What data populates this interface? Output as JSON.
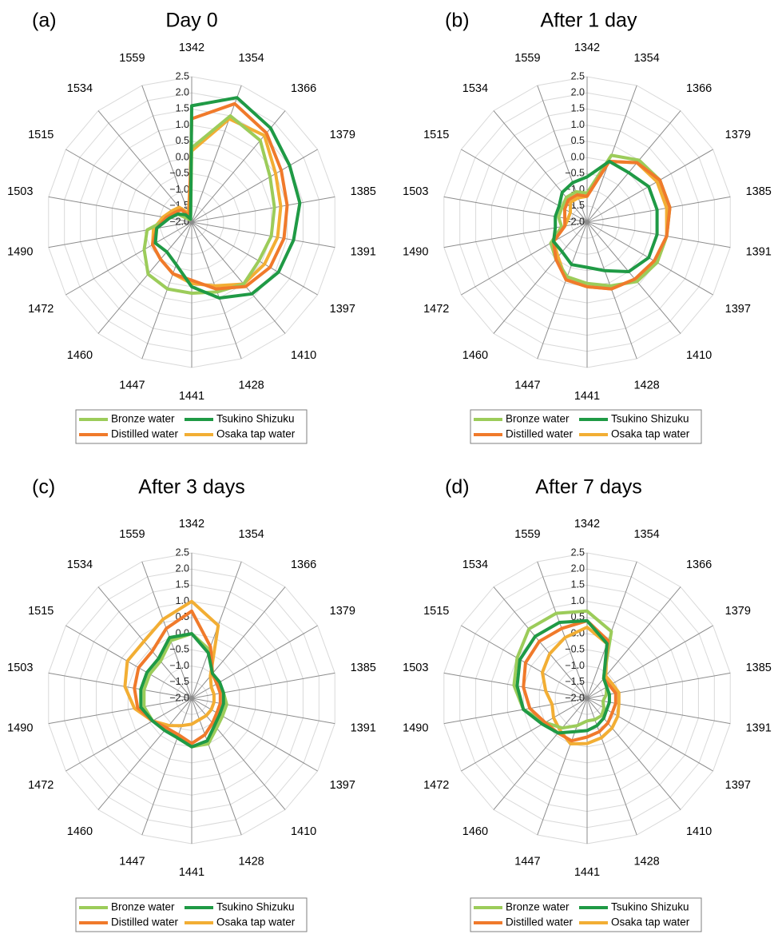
{
  "figure": {
    "categories": [
      "1342",
      "1354",
      "1366",
      "1379",
      "1385",
      "1391",
      "1397",
      "1410",
      "1428",
      "1441",
      "1447",
      "1460",
      "1472",
      "1490",
      "1503",
      "1515",
      "1534",
      "1559"
    ],
    "rticks": [
      "2.5",
      "2.0",
      "1.5",
      "1.0",
      "0.5",
      "0.0",
      "−0.5",
      "−1.0",
      "−1.5",
      "−2.0"
    ],
    "legend": [
      {
        "name": "Bronze water",
        "color": "#9ccc5a"
      },
      {
        "name": "Tsukino Shizuku",
        "color": "#1f9a45"
      },
      {
        "name": "Distilled water",
        "color": "#f07a2b"
      },
      {
        "name": "Osaka tap water",
        "color": "#f2ae34"
      }
    ]
  },
  "chart_data": [
    {
      "type": "radar",
      "panel": "(a)",
      "title": "Day 0",
      "categories": [
        "1342",
        "1354",
        "1366",
        "1379",
        "1385",
        "1391",
        "1397",
        "1410",
        "1428",
        "1441",
        "1447",
        "1460",
        "1472",
        "1490",
        "1503",
        "1515",
        "1534",
        "1559"
      ],
      "rlim": [
        -2.0,
        2.5
      ],
      "series": [
        {
          "name": "Bronze water",
          "color": "#9ccc5a",
          "values": [
            0.3,
            1.5,
            1.3,
            0.8,
            0.6,
            0.5,
            0.4,
            0.5,
            0.3,
            0.2,
            0.2,
            0.1,
            -0.3,
            -0.6,
            -1.3,
            -1.5,
            -1.9,
            -1.9
          ]
        },
        {
          "name": "Tsukino Shizuku",
          "color": "#1f9a45",
          "values": [
            1.6,
            2.1,
            1.8,
            1.5,
            1.4,
            1.2,
            1.1,
            0.9,
            0.5,
            0.0,
            -0.6,
            -0.8,
            -0.7,
            -0.9,
            -1.3,
            -1.5,
            -1.7,
            -1.9
          ]
        },
        {
          "name": "Distilled water",
          "color": "#f07a2b",
          "values": [
            1.2,
            1.9,
            1.6,
            1.2,
            1.0,
            0.9,
            0.8,
            0.6,
            0.2,
            -0.2,
            -0.3,
            -0.5,
            -0.6,
            -0.9,
            -1.2,
            -1.4,
            -1.5,
            -1.8
          ]
        },
        {
          "name": "Osaka tap water",
          "color": "#f2ae34",
          "values": [
            0.2,
            1.4,
            1.5,
            1.0,
            0.8,
            0.7,
            0.6,
            0.5,
            0.1,
            -0.1,
            -0.3,
            -0.5,
            -0.6,
            -0.8,
            -1.1,
            -1.3,
            -1.4,
            -1.7
          ]
        }
      ]
    },
    {
      "type": "radar",
      "panel": "(b)",
      "title": "After 1 day",
      "categories": [
        "1342",
        "1354",
        "1366",
        "1379",
        "1385",
        "1391",
        "1397",
        "1410",
        "1428",
        "1441",
        "1447",
        "1460",
        "1472",
        "1490",
        "1503",
        "1515",
        "1534",
        "1559"
      ],
      "rlim": [
        -2.0,
        2.5
      ],
      "series": [
        {
          "name": "Bronze water",
          "color": "#9ccc5a",
          "values": [
            -1.1,
            0.2,
            0.5,
            0.6,
            0.6,
            0.5,
            0.5,
            0.4,
            0.1,
            -0.1,
            -0.2,
            -0.5,
            -0.7,
            -1.2,
            -1.1,
            -1.1,
            -1.0,
            -1.0
          ]
        },
        {
          "name": "Tsukino Shizuku",
          "color": "#1f9a45",
          "values": [
            -0.6,
            0.0,
            0.0,
            0.2,
            0.2,
            0.2,
            0.2,
            0.0,
            -0.4,
            -0.6,
            -0.6,
            -0.8,
            -0.8,
            -1.0,
            -1.0,
            -1.0,
            -0.8,
            -0.7
          ]
        },
        {
          "name": "Distilled water",
          "color": "#f07a2b",
          "values": [
            -1.2,
            0.0,
            0.4,
            0.6,
            0.6,
            0.5,
            0.4,
            0.3,
            0.2,
            0.0,
            -0.1,
            -0.5,
            -0.8,
            -1.3,
            -1.3,
            -1.2,
            -1.1,
            -1.1
          ]
        },
        {
          "name": "Osaka tap water",
          "color": "#f2ae34",
          "values": [
            -1.2,
            0.0,
            0.4,
            0.5,
            0.5,
            0.5,
            0.5,
            0.3,
            0.2,
            0.0,
            -0.1,
            -0.6,
            -0.8,
            -1.3,
            -1.4,
            -1.4,
            -1.2,
            -1.2
          ]
        }
      ]
    },
    {
      "type": "radar",
      "panel": "(c)",
      "title": "After 3 days",
      "categories": [
        "1342",
        "1354",
        "1366",
        "1379",
        "1385",
        "1391",
        "1397",
        "1410",
        "1428",
        "1441",
        "1447",
        "1460",
        "1472",
        "1490",
        "1503",
        "1515",
        "1534",
        "1559"
      ],
      "rlim": [
        -2.0,
        2.5
      ],
      "series": [
        {
          "name": "Bronze water",
          "color": "#9ccc5a",
          "values": [
            0.0,
            -0.4,
            -1.0,
            -1.1,
            -1.0,
            -0.9,
            -0.9,
            -0.8,
            -0.5,
            -0.5,
            -0.7,
            -0.8,
            -0.6,
            -0.5,
            -0.5,
            -0.5,
            -0.5,
            -0.1
          ]
        },
        {
          "name": "Tsukino Shizuku",
          "color": "#1f9a45",
          "values": [
            0.0,
            -0.5,
            -1.0,
            -1.0,
            -1.0,
            -1.0,
            -1.0,
            -0.9,
            -0.6,
            -0.5,
            -0.7,
            -0.7,
            -0.6,
            -0.4,
            -0.4,
            -0.4,
            -0.4,
            -0.0
          ]
        },
        {
          "name": "Distilled water",
          "color": "#f07a2b",
          "values": [
            0.7,
            -0.3,
            -1.0,
            -1.1,
            -1.1,
            -1.1,
            -1.1,
            -1.0,
            -0.8,
            -0.6,
            -0.8,
            -0.8,
            -0.6,
            -0.3,
            -0.2,
            -0.1,
            -0.1,
            0.3
          ]
        },
        {
          "name": "Osaka tap water",
          "color": "#f2ae34",
          "values": [
            1.0,
            0.4,
            -1.1,
            -1.3,
            -1.3,
            -1.3,
            -1.3,
            -1.3,
            -1.3,
            -1.2,
            -1.1,
            -0.9,
            -0.6,
            -0.2,
            0.1,
            0.3,
            0.3,
            0.6
          ]
        }
      ]
    },
    {
      "type": "radar",
      "panel": "(d)",
      "title": "After 7 days",
      "categories": [
        "1342",
        "1354",
        "1366",
        "1379",
        "1385",
        "1391",
        "1397",
        "1410",
        "1428",
        "1441",
        "1447",
        "1460",
        "1472",
        "1490",
        "1503",
        "1515",
        "1534",
        "1559"
      ],
      "rlim": [
        -2.0,
        2.5
      ],
      "series": [
        {
          "name": "Bronze water",
          "color": "#9ccc5a",
          "values": [
            0.7,
            0.2,
            -1.2,
            -1.3,
            -1.4,
            -1.5,
            -1.4,
            -1.3,
            -1.3,
            -1.3,
            -1.1,
            -0.8,
            -0.5,
            0.0,
            0.3,
            0.5,
            0.8,
            0.8
          ]
        },
        {
          "name": "Tsukino Shizuku",
          "color": "#1f9a45",
          "values": [
            0.4,
            -0.2,
            -1.2,
            -1.3,
            -1.3,
            -1.3,
            -1.3,
            -1.2,
            -1.1,
            -1.0,
            -0.9,
            -0.6,
            -0.4,
            0.0,
            0.2,
            0.4,
            0.5,
            0.5
          ]
        },
        {
          "name": "Distilled water",
          "color": "#f07a2b",
          "values": [
            0.4,
            -0.1,
            -1.2,
            -1.2,
            -1.1,
            -1.1,
            -1.1,
            -1.0,
            -0.9,
            -0.8,
            -0.6,
            -0.6,
            -0.5,
            -0.2,
            -0.0,
            0.2,
            0.3,
            0.3
          ]
        },
        {
          "name": "Osaka tap water",
          "color": "#f2ae34",
          "values": [
            0.2,
            -0.2,
            -1.1,
            -1.1,
            -1.0,
            -1.0,
            -0.9,
            -0.8,
            -0.7,
            -0.6,
            -0.5,
            -0.7,
            -0.8,
            -0.9,
            -0.7,
            -0.4,
            -0.2,
            0.0
          ]
        }
      ]
    }
  ]
}
